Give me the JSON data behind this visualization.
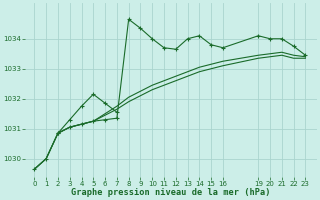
{
  "bg_color": "#cceee8",
  "grid_color": "#aad4ce",
  "line_color": "#1a6b2a",
  "title": "Graphe pression niveau de la mer (hPa)",
  "title_color": "#1a6b2a",
  "ylim": [
    1029.4,
    1035.2
  ],
  "yticks": [
    1030,
    1031,
    1032,
    1033,
    1034
  ],
  "xticks": [
    0,
    1,
    2,
    3,
    4,
    5,
    6,
    7,
    8,
    9,
    10,
    11,
    12,
    13,
    14,
    15,
    16,
    19,
    20,
    21,
    22,
    23
  ],
  "xlim": [
    -0.8,
    24.0
  ],
  "series1_x": [
    0,
    1,
    2,
    3,
    4,
    5,
    6,
    7,
    8,
    9,
    10,
    11,
    12,
    13,
    14,
    15,
    16,
    19,
    20,
    21,
    22,
    23
  ],
  "series1_y": [
    1029.65,
    1030.0,
    1030.85,
    1031.05,
    1031.15,
    1031.25,
    1031.3,
    1031.35,
    1034.65,
    1034.35,
    1034.0,
    1033.7,
    1033.65,
    1034.0,
    1034.1,
    1033.8,
    1033.7,
    1034.1,
    1034.0,
    1034.0,
    1033.75,
    1033.45
  ],
  "series2_x": [
    0,
    1,
    2,
    3,
    4,
    5,
    6,
    7,
    8,
    9,
    10,
    11,
    12,
    13,
    14,
    15,
    16,
    19,
    20,
    21,
    22,
    23
  ],
  "series2_y": [
    1029.65,
    1030.0,
    1030.85,
    1031.05,
    1031.15,
    1031.25,
    1031.5,
    1031.75,
    1032.05,
    1032.25,
    1032.45,
    1032.6,
    1032.75,
    1032.9,
    1033.05,
    1033.15,
    1033.25,
    1033.45,
    1033.5,
    1033.55,
    1033.45,
    1033.4
  ],
  "series3_x": [
    0,
    1,
    2,
    3,
    4,
    5,
    6,
    7,
    8,
    9,
    10,
    11,
    12,
    13,
    14,
    15,
    16,
    19,
    20,
    21,
    22,
    23
  ],
  "series3_y": [
    1029.65,
    1030.0,
    1030.85,
    1031.05,
    1031.15,
    1031.25,
    1031.45,
    1031.65,
    1031.9,
    1032.1,
    1032.3,
    1032.45,
    1032.6,
    1032.75,
    1032.9,
    1033.0,
    1033.1,
    1033.35,
    1033.4,
    1033.45,
    1033.35,
    1033.35
  ],
  "branch_x": [
    2,
    3,
    4,
    5,
    6,
    7
  ],
  "branch_y": [
    1030.85,
    1031.3,
    1031.75,
    1032.15,
    1031.85,
    1031.55
  ]
}
